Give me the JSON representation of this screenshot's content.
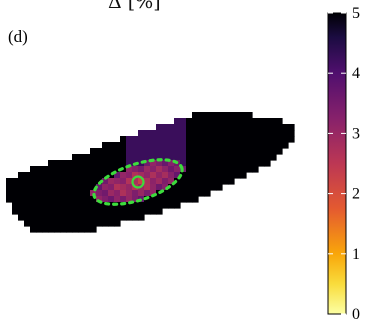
{
  "figure": {
    "panel_label": "(d)",
    "partial_title": "Δ [%]"
  },
  "chart_data": {
    "type": "heatmap",
    "title": "Δ [%]",
    "colormap": "inferno-reversed",
    "colorbar": {
      "min": 0,
      "max": 5,
      "ticks": [
        0,
        1,
        2,
        3,
        4,
        5
      ],
      "position": "right",
      "low_color": "#fcffa4",
      "high_color": "#000004"
    },
    "region": {
      "background_value": 5,
      "description_values": {
        "upper_lobe": 4.0,
        "hotspot_center": 2.5,
        "hotspot_edge": 3.4
      }
    },
    "overlays": {
      "ellipse_style": "dotted",
      "ellipse_color": "#3ddc3d",
      "marker": "circle",
      "marker_color": "#3ddc3d"
    }
  }
}
